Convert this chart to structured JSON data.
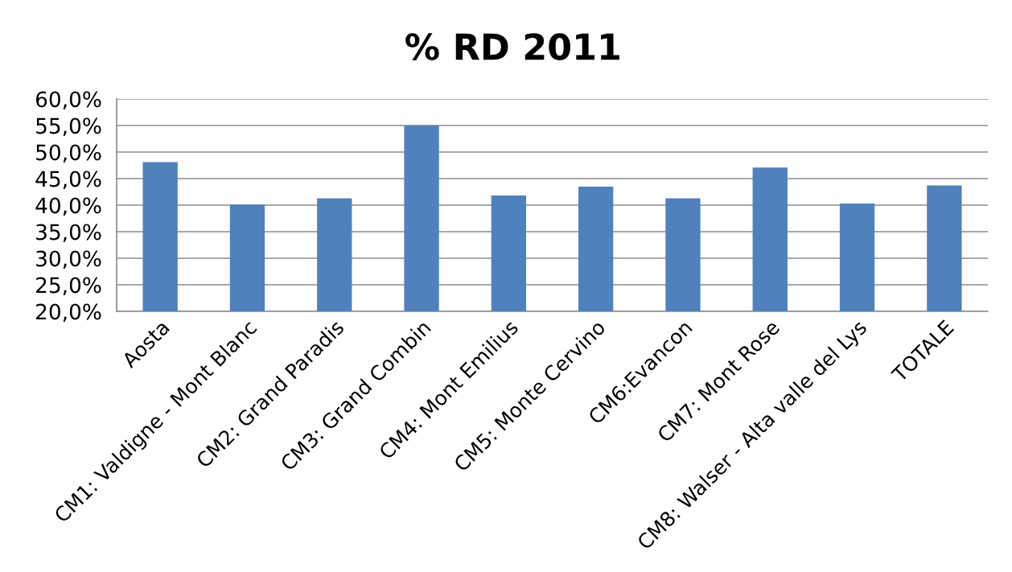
{
  "chart_data": {
    "type": "bar",
    "title": "% RD 2011",
    "categories": [
      "Aosta",
      "CM1: Valdigne - Mont Blanc",
      "CM2: Grand Paradis",
      "CM3: Grand Combin",
      "CM4: Mont Emilius",
      "CM5: Monte Cervino",
      "CM6:Evancon",
      "CM7: Mont Rose",
      "CM8: Walser - Alta valle del Lys",
      "TOTALE"
    ],
    "values": [
      48.1,
      40.1,
      41.3,
      55.0,
      41.8,
      43.5,
      41.3,
      47.1,
      40.3,
      43.7
    ],
    "color": "#4f81bd",
    "ylim": [
      20,
      60
    ],
    "yticks": [
      {
        "value": 20,
        "label": "20,0%"
      },
      {
        "value": 25,
        "label": "25,0%"
      },
      {
        "value": 30,
        "label": "30,0%"
      },
      {
        "value": 35,
        "label": "35,0%"
      },
      {
        "value": 40,
        "label": "40,0%"
      },
      {
        "value": 45,
        "label": "45,0%"
      },
      {
        "value": 50,
        "label": "50,0%"
      },
      {
        "value": 55,
        "label": "55,0%"
      },
      {
        "value": 60,
        "label": "60,0%"
      }
    ],
    "grid": "y",
    "legend": false
  }
}
